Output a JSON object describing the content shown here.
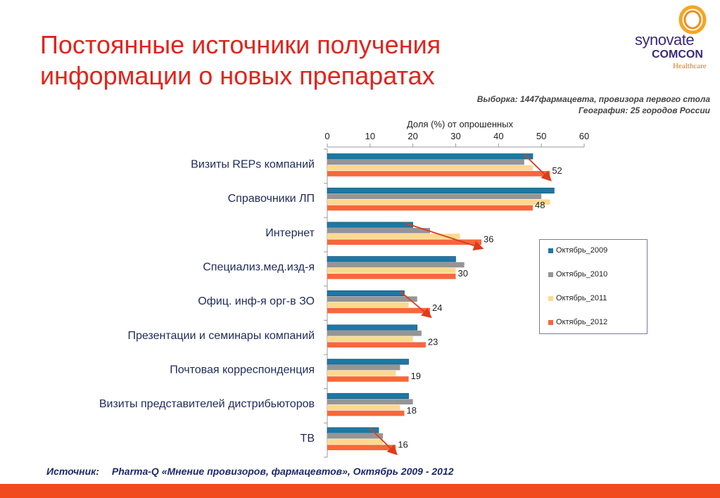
{
  "title": {
    "line1": "Постоянные источники получения",
    "line2": "информации о новых препаратах"
  },
  "logo": {
    "text1": "synovate",
    "text2": "COMCON",
    "text3": "Healthcare"
  },
  "sample": {
    "line1": "Выборка: 1447фармацевта, провизора первого стола",
    "line2": "География: 25 городов  России"
  },
  "source": {
    "label": "Источник:",
    "text": "Pharma-Q «Мнение провизоров, фармацевтов», Октябрь 2009 - 2012"
  },
  "colors": {
    "title": "#e3231b",
    "footer": "#f04a1e"
  },
  "chart_data": {
    "type": "bar",
    "orientation": "horizontal",
    "xlabel": "Доля (%) от опрошенных",
    "xlim": [
      0,
      60
    ],
    "xticks": [
      "0",
      "10",
      "20",
      "30",
      "40",
      "50",
      "60"
    ],
    "categories": [
      "Визиты REPs компаний",
      "Справочники ЛП",
      "Интернет",
      "Специализ.мед.изд-я",
      "Офиц. инф-я орг-в ЗО",
      "Презентации и семинары компаний",
      "Почтовая корреспонденция",
      "Визиты представителей дистрибьюторов",
      "ТВ"
    ],
    "series": [
      {
        "name": "Октябрь_2009",
        "color": "#1f77a3",
        "values": [
          48,
          53,
          20,
          30,
          18,
          21,
          19,
          19,
          12
        ]
      },
      {
        "name": "Октябрь_2010",
        "color": "#959595",
        "values": [
          46,
          50,
          24,
          32,
          21,
          22,
          17,
          20,
          13
        ]
      },
      {
        "name": "Октябрь_2011",
        "color": "#fcd98f",
        "values": [
          48,
          52,
          31,
          30,
          19,
          20,
          16,
          17,
          13
        ]
      },
      {
        "name": "Октябрь_2012",
        "color": "#f7673b",
        "values": [
          52,
          48,
          36,
          30,
          24,
          23,
          19,
          18,
          16
        ]
      }
    ],
    "data_labels": [
      "52",
      "48",
      "36",
      "30",
      "24",
      "23",
      "19",
      "18",
      "16"
    ],
    "trend_arrows": [
      {
        "category_index": 0,
        "from": 46,
        "to": 52
      },
      {
        "category_index": 2,
        "from": 18,
        "to": 36
      },
      {
        "category_index": 4,
        "from": 17,
        "to": 24
      },
      {
        "category_index": 8,
        "from": 10,
        "to": 16
      }
    ],
    "arrow_color": "#e03a1a",
    "legend_position": "right"
  }
}
